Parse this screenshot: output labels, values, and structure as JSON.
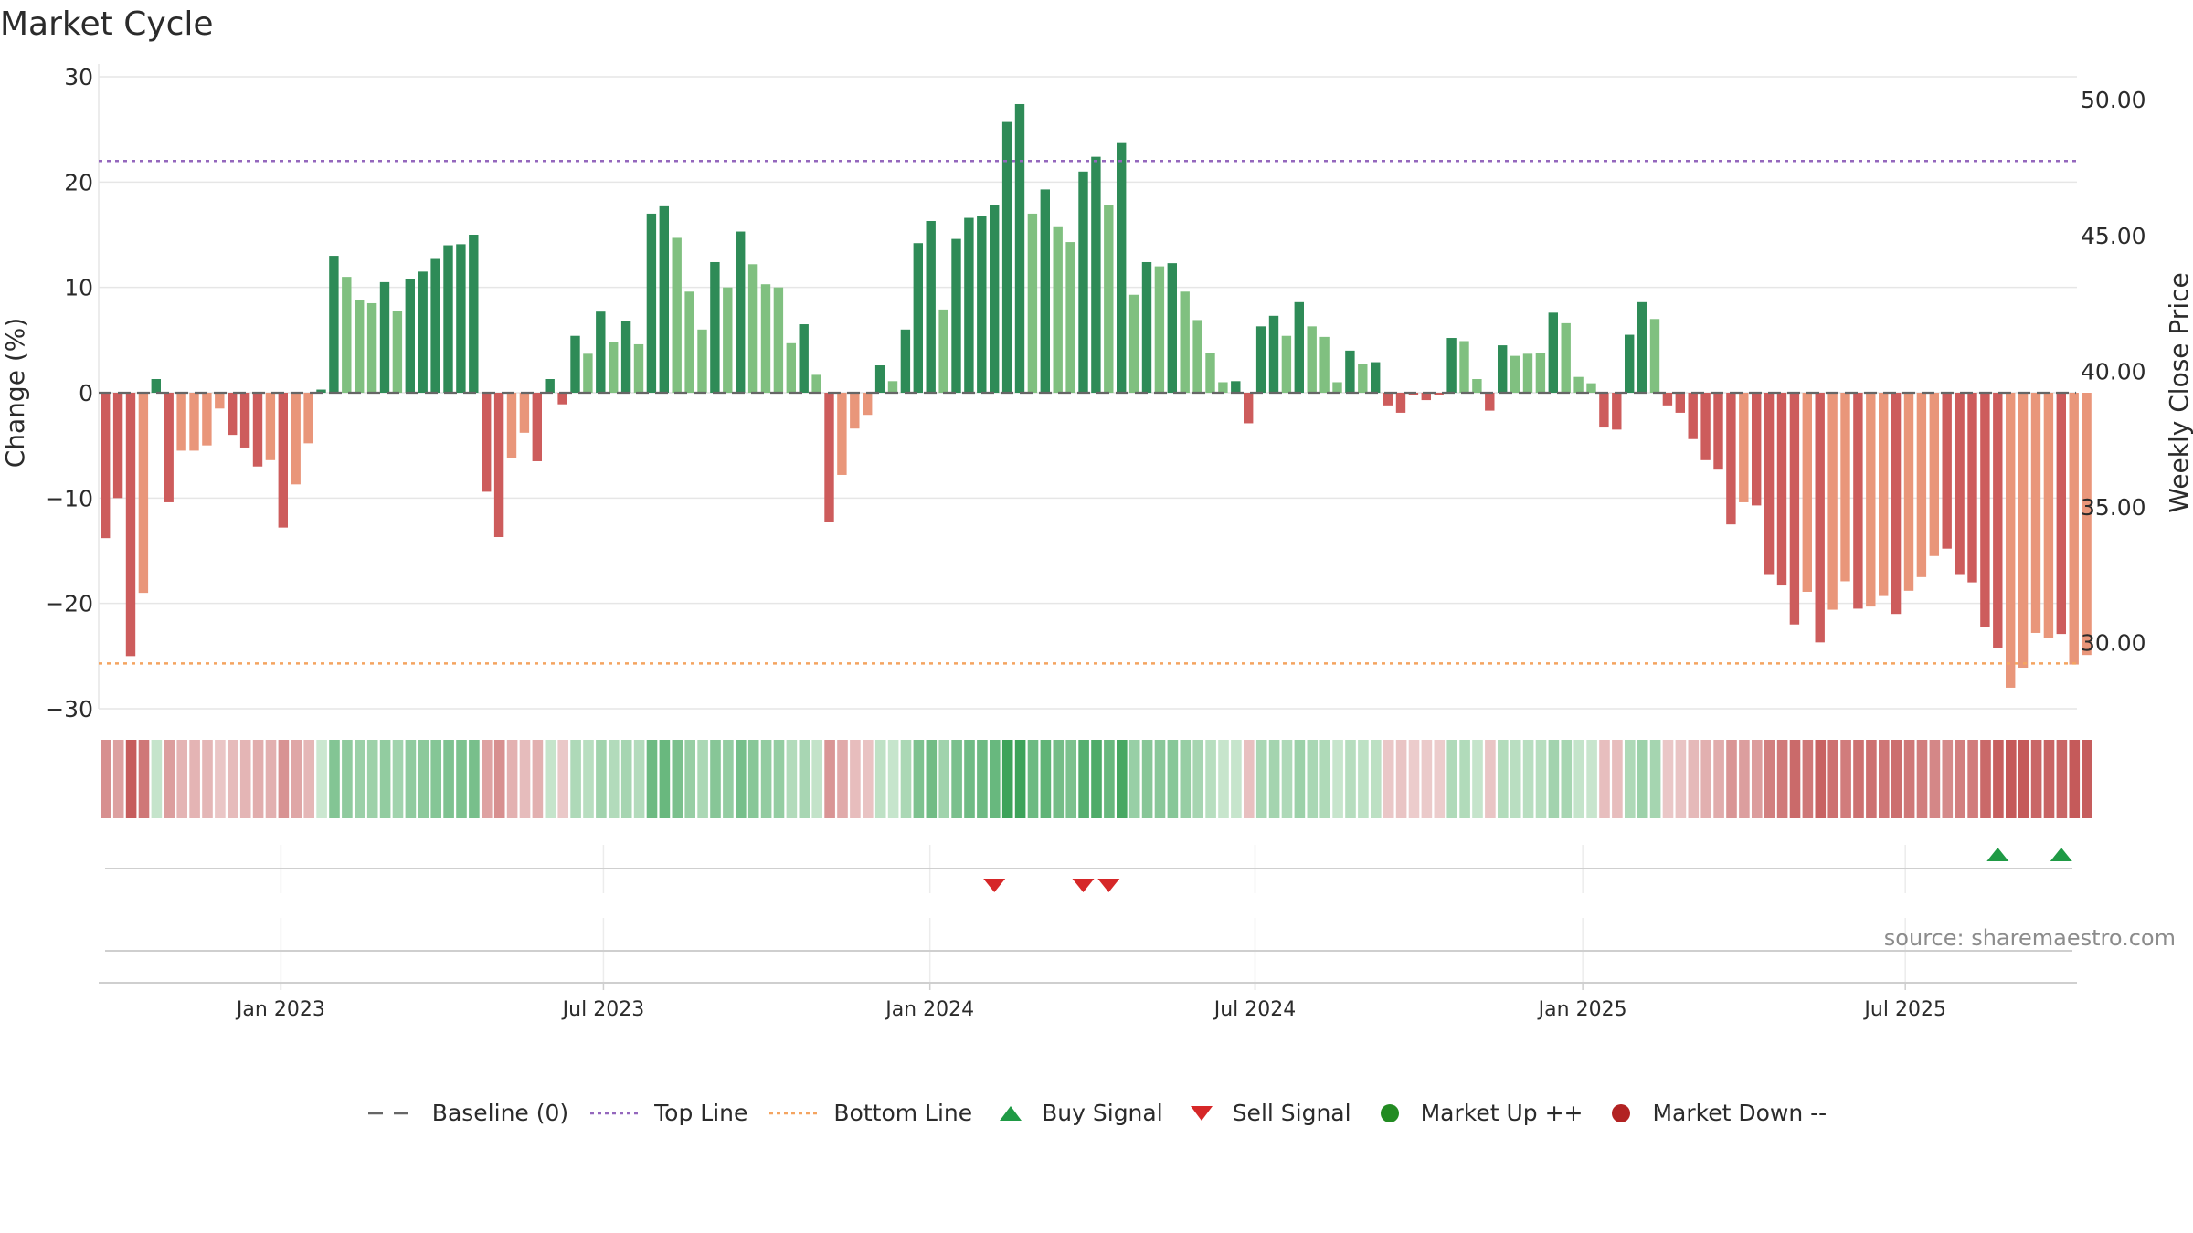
{
  "title": "Market Cycle",
  "source": "source: sharemaestro.com",
  "colors": {
    "up_strong": "#2e8b57",
    "up_light": "#80c080",
    "down_strong": "#cd5c5c",
    "down_light": "#e9967a",
    "top_line": "#9467bd",
    "bottom_line": "#f4a460",
    "baseline": "#666666",
    "buy": "#1f9a45",
    "sell": "#d62728",
    "market_up": "#228b22",
    "market_down": "#b22222"
  },
  "legend": [
    {
      "label": "Baseline (0)",
      "icon": "baseline-dash-icon"
    },
    {
      "label": "Top Line",
      "icon": "top-line-dot-icon"
    },
    {
      "label": "Bottom Line",
      "icon": "bottom-line-dot-icon"
    },
    {
      "label": "Buy Signal",
      "icon": "triangle-up-icon"
    },
    {
      "label": "Sell Signal",
      "icon": "triangle-down-icon"
    },
    {
      "label": "Market Up ++",
      "icon": "green-dot-icon"
    },
    {
      "label": "Market Down --",
      "icon": "red-dot-icon"
    }
  ],
  "chart_data": {
    "type": "bar",
    "ylabel": "Change (%)",
    "y2label": "Weekly Close Price",
    "ylim": [
      -30,
      30
    ],
    "yticks": [
      30,
      20,
      10,
      0,
      -10,
      -20,
      -30
    ],
    "ytick_labels": [
      "30",
      "20",
      "10",
      "0",
      "−10",
      "−20",
      "−30"
    ],
    "y2lim": [
      27.5,
      53.0
    ],
    "y2ticks": [
      50.0,
      45.0,
      40.0,
      35.0,
      30.0
    ],
    "y2tick_labels": [
      "50.00",
      "45.00",
      "40.00",
      "35.00",
      "30.00"
    ],
    "xticks": [
      "Jan 2023",
      "Jul 2023",
      "Jan 2024",
      "Jul 2024",
      "Jan 2025",
      "Jul 2025"
    ],
    "top_line": 22,
    "bottom_line": -25.7,
    "grid": true,
    "values": [
      -13.8,
      -10.0,
      -25.0,
      -19.0,
      1.3,
      -10.4,
      -5.5,
      -5.5,
      -5.0,
      -1.5,
      -4.0,
      -5.2,
      -7.0,
      -6.4,
      -12.8,
      -8.7,
      -4.8,
      0.3,
      13.0,
      11.0,
      8.8,
      8.5,
      10.5,
      7.8,
      10.8,
      11.5,
      12.7,
      14.0,
      14.1,
      15.0,
      -9.4,
      -13.7,
      -6.2,
      -3.8,
      -6.5,
      1.3,
      -1.1,
      5.4,
      3.7,
      7.7,
      4.8,
      6.8,
      4.6,
      17.0,
      17.7,
      14.7,
      9.6,
      6.0,
      12.4,
      10.0,
      15.3,
      12.2,
      10.3,
      10.0,
      4.7,
      6.5,
      1.7,
      -12.3,
      -7.8,
      -3.4,
      -2.1,
      2.6,
      1.1,
      6.0,
      14.2,
      16.3,
      7.9,
      14.6,
      16.6,
      16.8,
      17.8,
      25.7,
      27.4,
      17.0,
      19.3,
      15.8,
      14.3,
      21.0,
      22.4,
      17.8,
      23.7,
      9.3,
      12.4,
      12.0,
      12.3,
      9.6,
      6.9,
      3.8,
      1.0,
      1.1,
      -2.9,
      6.3,
      7.3,
      5.4,
      8.6,
      6.3,
      5.3,
      1.0,
      4.0,
      2.7,
      2.9,
      -1.2,
      -1.9,
      -0.2,
      -0.7,
      -0.2,
      5.2,
      4.9,
      1.3,
      -1.7,
      4.5,
      3.5,
      3.7,
      3.8,
      7.6,
      6.6,
      1.5,
      0.9,
      -3.3,
      -3.5,
      5.5,
      8.6,
      7.0,
      -1.2,
      -1.9,
      -4.4,
      -6.4,
      -7.3,
      -12.5,
      -10.4,
      -10.7,
      -17.3,
      -18.3,
      -22.0,
      -18.9,
      -23.7,
      -20.6,
      -17.9,
      -20.5,
      -20.3,
      -19.3,
      -21.0,
      -18.8,
      -17.5,
      -15.5,
      -14.8,
      -17.3,
      -18.0,
      -22.2,
      -24.2,
      -28.0,
      -26.1,
      -22.8,
      -23.3,
      -22.9,
      -25.8,
      -24.9
    ],
    "strong": [
      1,
      1,
      1,
      0,
      1,
      1,
      0,
      0,
      0,
      0,
      1,
      1,
      1,
      0,
      1,
      0,
      0,
      1,
      1,
      0,
      0,
      0,
      1,
      0,
      1,
      1,
      1,
      1,
      1,
      1,
      1,
      1,
      0,
      0,
      1,
      1,
      1,
      1,
      0,
      1,
      0,
      1,
      0,
      1,
      1,
      0,
      0,
      0,
      1,
      0,
      1,
      0,
      0,
      0,
      0,
      1,
      0,
      1,
      0,
      0,
      0,
      1,
      0,
      1,
      1,
      1,
      0,
      1,
      1,
      1,
      1,
      1,
      1,
      0,
      1,
      0,
      0,
      1,
      1,
      0,
      1,
      0,
      1,
      0,
      1,
      0,
      0,
      0,
      0,
      1,
      1,
      1,
      1,
      0,
      1,
      0,
      0,
      0,
      1,
      0,
      1,
      1,
      1,
      1,
      1,
      1,
      1,
      0,
      0,
      1,
      1,
      0,
      0,
      0,
      1,
      0,
      0,
      0,
      1,
      1,
      1,
      1,
      0,
      1,
      1,
      1,
      1,
      1,
      1,
      0,
      1,
      1,
      1,
      1,
      0,
      1,
      0,
      0,
      1,
      0,
      0,
      1,
      0,
      0,
      0,
      1,
      1,
      1,
      1,
      1,
      0,
      0,
      0,
      0,
      1,
      0
    ],
    "buy_signal_indices": [
      149,
      154
    ],
    "sell_signal_indices": [
      70,
      77,
      79
    ]
  }
}
